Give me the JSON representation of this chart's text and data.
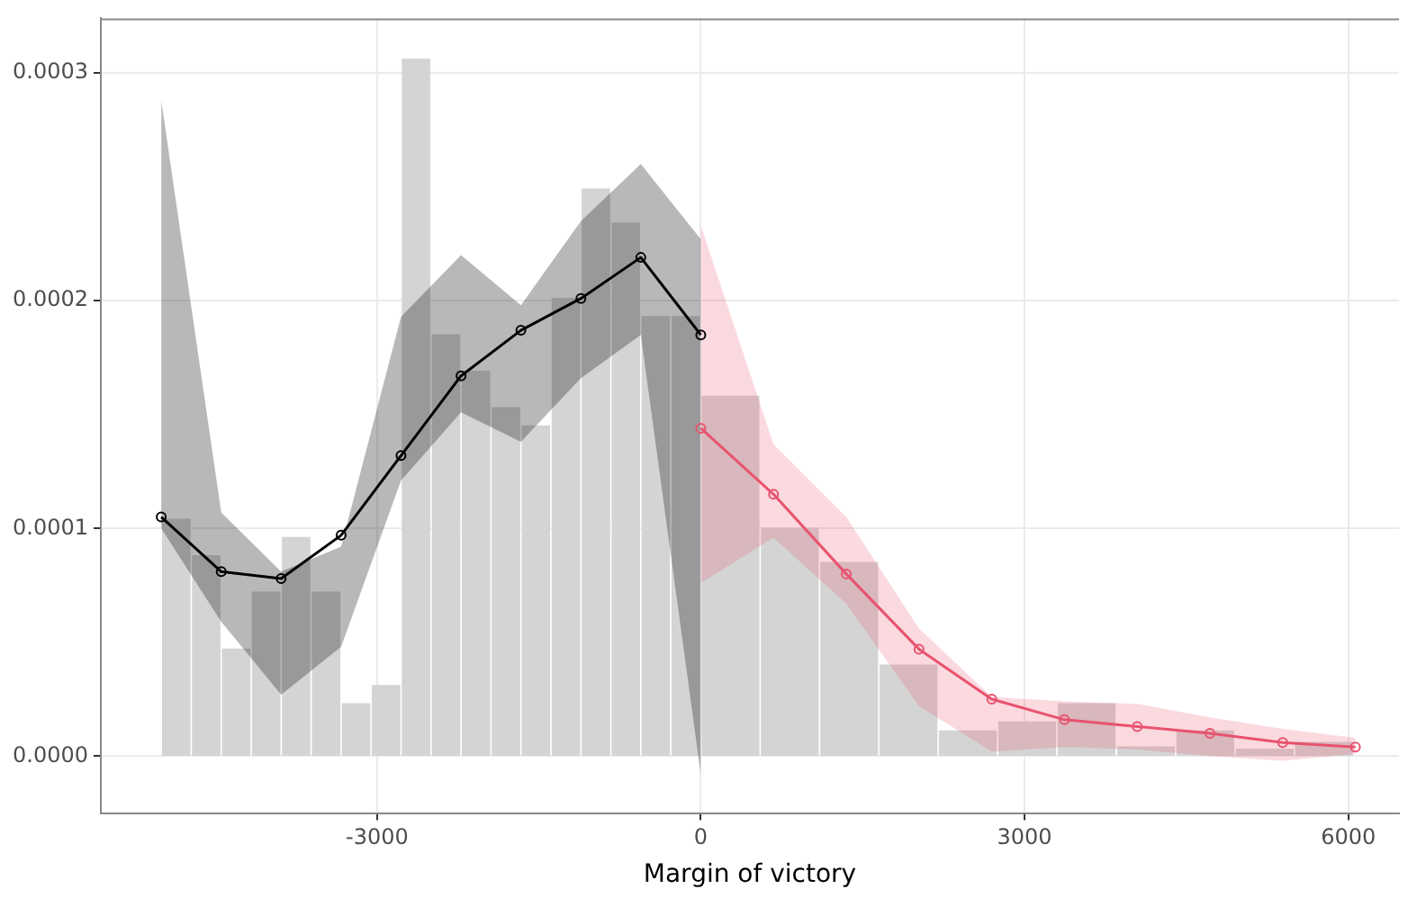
{
  "chart_data": {
    "type": "histogram",
    "xlabel": "Margin of victory",
    "color": "#d4d4d4",
    "bins": [
      -5000,
      -4722,
      -4444,
      -4167,
      -3889,
      -3611,
      -3333,
      -3056,
      -2778,
      -2500,
      -2222,
      -1944,
      -1667,
      -1389,
      -1111,
      -833,
      -556,
      -278,
      0,
      550,
      1100,
      1650,
      2200,
      2750,
      3300,
      3850,
      4400,
      4950,
      5500,
      6050
    ],
    "values": [
      0.000104,
      8.8e-05,
      4.7e-05,
      7.2e-05,
      9.6e-05,
      7.2e-05,
      2.3e-05,
      3.1e-05,
      0.000306,
      0.000185,
      0.000169,
      0.000153,
      0.000145,
      0.000201,
      0.000249,
      0.000234,
      0.000193,
      0.000193,
      0.000158,
      0.0001,
      8.5e-05,
      4e-05,
      1.1e-05,
      1.5e-05,
      2.3e-05,
      4e-06,
      1.1e-05,
      3e-06,
      6e-06
    ],
    "series": [
      {
        "type": "line",
        "color": "#000000",
        "x": [
          -5000,
          -4444,
          -3889,
          -3333,
          -2778,
          -2222,
          -1667,
          -1111,
          -556,
          0
        ],
        "values": [
          0.000105,
          8.1e-05,
          7.8e-05,
          9.7e-05,
          0.000132,
          0.000167,
          0.000187,
          0.000201,
          0.000219,
          0.000185
        ],
        "lower": [
          0.0001,
          5.9e-05,
          2.7e-05,
          4.8e-05,
          0.000121,
          0.000151,
          0.000138,
          0.000166,
          0.000185,
          -8e-06
        ],
        "upper": [
          0.000288,
          0.000107,
          8.1e-05,
          9.2e-05,
          0.000193,
          0.00022,
          0.000198,
          0.000235,
          0.00026,
          0.000227
        ]
      },
      {
        "type": "line",
        "color": "#e8536e",
        "x": [
          0,
          674,
          1348,
          2022,
          2696,
          3370,
          4044,
          4718,
          5392,
          6066
        ],
        "values": [
          0.000144,
          0.000115,
          8e-05,
          4.7e-05,
          2.5e-05,
          1.6e-05,
          1.3e-05,
          1e-05,
          6e-06,
          4e-06
        ],
        "lower": [
          7.6e-05,
          9.6e-05,
          6.7e-05,
          2.2e-05,
          2e-06,
          4e-06,
          3e-06,
          0,
          -2e-06,
          1e-06
        ],
        "upper": [
          0.000233,
          0.000137,
          0.000105,
          5.6e-05,
          2.6e-05,
          2.4e-05,
          2.3e-05,
          1.7e-05,
          1.2e-05,
          8e-06
        ]
      }
    ],
    "xlim": [
      -5560,
      6470
    ],
    "ylim": [
      -2.5e-05,
      0.000324
    ],
    "xticks": [
      -3000,
      0,
      3000,
      6000
    ],
    "yticks": [
      {
        "value": 0,
        "label": "0.0000"
      },
      {
        "value": 0.0001,
        "label": "0.0001"
      },
      {
        "value": 0.0002,
        "label": "0.0002"
      },
      {
        "value": 0.0003,
        "label": "0.0003"
      }
    ],
    "grid": true,
    "marker": "circle",
    "line_style": "solid"
  }
}
